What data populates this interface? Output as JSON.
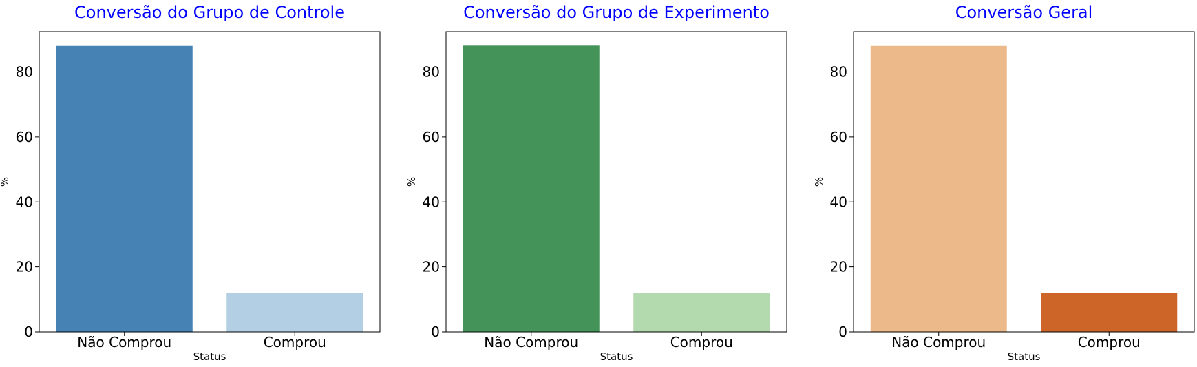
{
  "chart_data": [
    {
      "type": "bar",
      "title": "Conversão do Grupo de Controle",
      "xlabel": "Status",
      "ylabel": "%",
      "categories": [
        "Não Comprou",
        "Comprou"
      ],
      "values": [
        88.0,
        12.0
      ],
      "ylim": [
        0,
        92.4
      ],
      "yticks": [
        "0",
        "20",
        "40",
        "60",
        "80"
      ],
      "colors": [
        "#4682b4",
        "#b3cfe3"
      ],
      "title_color": "#0000ff",
      "grid": false
    },
    {
      "type": "bar",
      "title": "Conversão do Grupo de Experimento",
      "xlabel": "Status",
      "ylabel": "%",
      "categories": [
        "Não Comprou",
        "Comprou"
      ],
      "values": [
        88.1,
        11.9
      ],
      "ylim": [
        0,
        92.4
      ],
      "yticks": [
        "0",
        "20",
        "40",
        "60",
        "80"
      ],
      "colors": [
        "#44945a",
        "#b3d9ae"
      ],
      "title_color": "#0000ff",
      "grid": false
    },
    {
      "type": "bar",
      "title": "Conversão Geral",
      "xlabel": "Status",
      "ylabel": "%",
      "categories": [
        "Não Comprou",
        "Comprou"
      ],
      "values": [
        88.0,
        12.0
      ],
      "ylim": [
        0,
        92.4
      ],
      "yticks": [
        "0",
        "20",
        "40",
        "60",
        "80"
      ],
      "colors": [
        "#ecb98b",
        "#cd6529"
      ],
      "title_color": "#0000ff",
      "grid": false
    }
  ]
}
